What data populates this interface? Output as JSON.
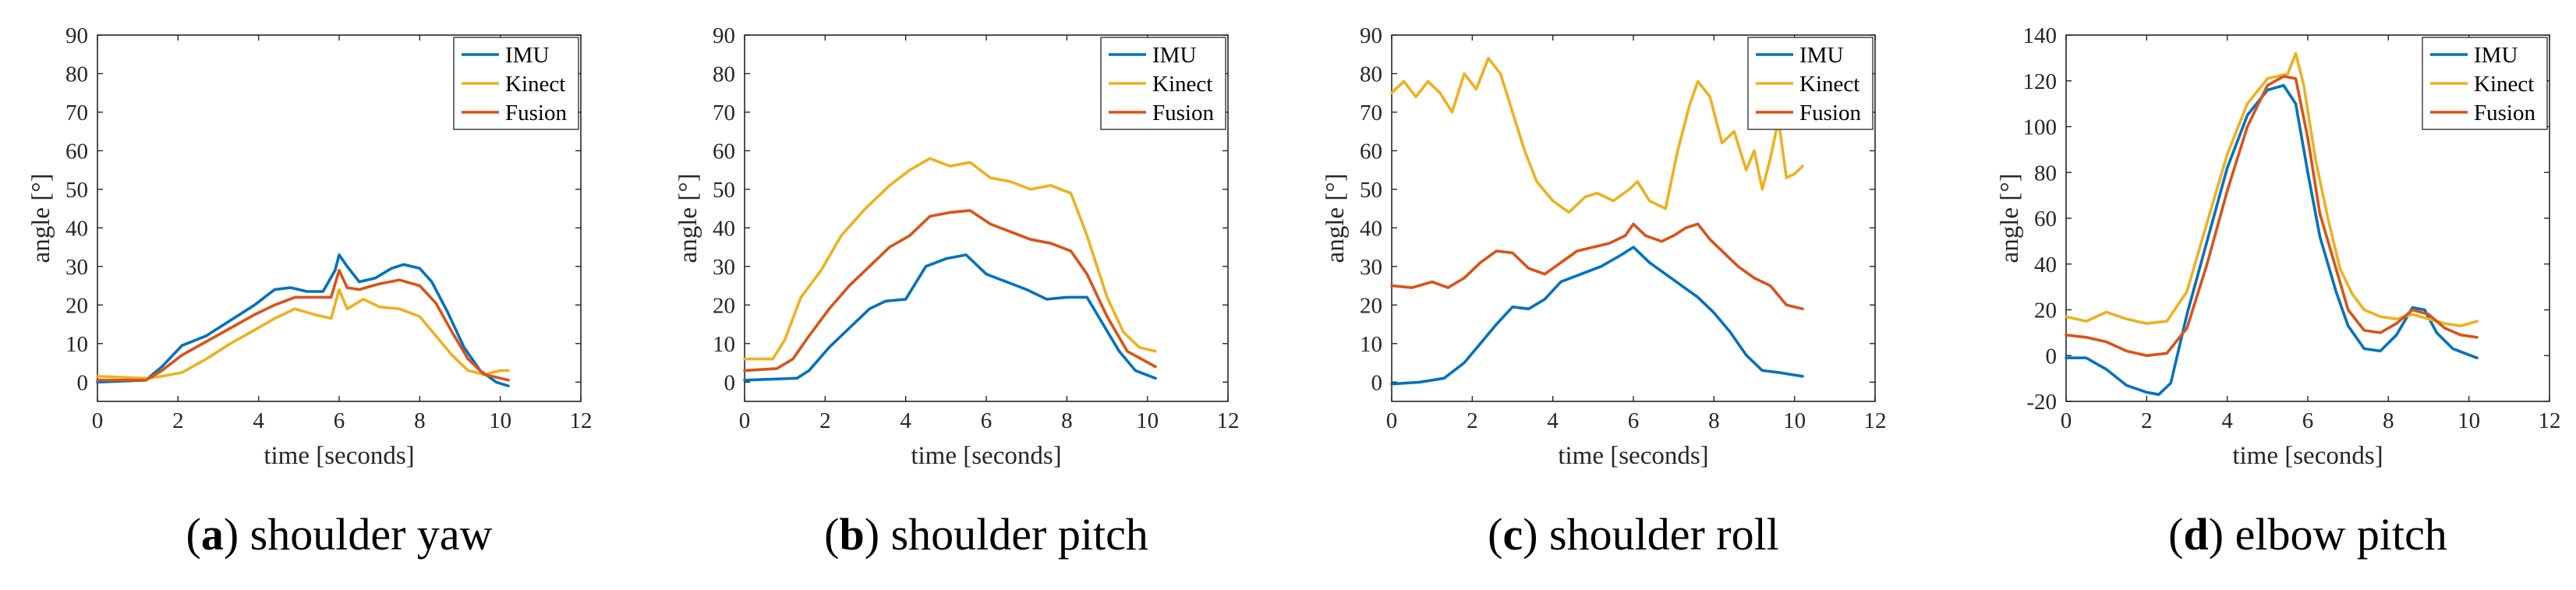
{
  "colors": {
    "IMU": "#0072BD",
    "Kinect": "#EDB120",
    "Fusion": "#D95319"
  },
  "chart_data": [
    {
      "type": "line",
      "caption_letter": "a",
      "caption_text": "shoulder yaw",
      "xlabel": "time [seconds]",
      "ylabel": "angle [°]",
      "xlim": [
        0,
        12
      ],
      "ylim": [
        -5,
        90
      ],
      "xticks": [
        0,
        2,
        4,
        6,
        8,
        10,
        12
      ],
      "yticks": [
        0,
        10,
        20,
        30,
        40,
        50,
        60,
        70,
        80,
        90
      ],
      "legend_position": "top-right",
      "series": [
        {
          "name": "IMU",
          "color_key": "IMU",
          "x": [
            0,
            1.2,
            1.6,
            2.1,
            2.7,
            3.3,
            3.9,
            4.4,
            4.8,
            5.2,
            5.6,
            5.9,
            6.0,
            6.2,
            6.5,
            6.9,
            7.3,
            7.6,
            8.0,
            8.3,
            8.7,
            9.1,
            9.5,
            9.9,
            10.2
          ],
          "y": [
            0,
            0.5,
            4,
            9.5,
            12,
            16,
            20,
            24,
            24.5,
            23.5,
            23.5,
            29,
            33,
            30,
            26,
            27,
            29.5,
            30.5,
            29.5,
            26,
            18,
            9,
            3,
            0,
            -1
          ]
        },
        {
          "name": "Kinect",
          "color_key": "Kinect",
          "x": [
            0,
            1.2,
            1.6,
            2.1,
            2.7,
            3.3,
            3.9,
            4.4,
            4.9,
            5.4,
            5.8,
            6.0,
            6.2,
            6.6,
            7.0,
            7.5,
            8.0,
            8.4,
            8.8,
            9.2,
            9.6,
            10.0,
            10.2
          ],
          "y": [
            1.5,
            1,
            1.5,
            2.5,
            6,
            10,
            13.5,
            16.5,
            19,
            17.5,
            16.5,
            24,
            19,
            21.5,
            19.5,
            19,
            17,
            12,
            7,
            3,
            2,
            3,
            3
          ]
        },
        {
          "name": "Fusion",
          "color_key": "Fusion",
          "x": [
            0,
            1.2,
            1.6,
            2.1,
            2.7,
            3.3,
            3.9,
            4.4,
            4.9,
            5.4,
            5.8,
            6.0,
            6.2,
            6.5,
            7.0,
            7.5,
            8.0,
            8.4,
            8.8,
            9.2,
            9.6,
            10.0,
            10.2
          ],
          "y": [
            0.5,
            0.5,
            3,
            7,
            10.5,
            14,
            17.5,
            20,
            22,
            22,
            22,
            29,
            24.5,
            24,
            25.5,
            26.5,
            25,
            20.5,
            13,
            6,
            2,
            1,
            0.5
          ]
        }
      ]
    },
    {
      "type": "line",
      "caption_letter": "b",
      "caption_text": "shoulder pitch",
      "xlabel": "time [seconds]",
      "ylabel": "angle [°]",
      "xlim": [
        0,
        12
      ],
      "ylim": [
        -5,
        90
      ],
      "xticks": [
        0,
        2,
        4,
        6,
        8,
        10,
        12
      ],
      "yticks": [
        0,
        10,
        20,
        30,
        40,
        50,
        60,
        70,
        80,
        90
      ],
      "legend_position": "top-right",
      "series": [
        {
          "name": "IMU",
          "color_key": "IMU",
          "x": [
            0,
            1.3,
            1.6,
            2.1,
            2.6,
            3.1,
            3.5,
            4.0,
            4.5,
            5.0,
            5.5,
            6.0,
            6.5,
            7.0,
            7.5,
            8.0,
            8.5,
            8.9,
            9.3,
            9.7,
            10.2
          ],
          "y": [
            0.5,
            1,
            3,
            9,
            14,
            19,
            21,
            21.5,
            30,
            32,
            33,
            28,
            26,
            24,
            21.5,
            22,
            22,
            15,
            8,
            3,
            1
          ]
        },
        {
          "name": "Kinect",
          "color_key": "Kinect",
          "x": [
            0,
            0.7,
            1.0,
            1.4,
            1.9,
            2.4,
            3.0,
            3.6,
            4.1,
            4.6,
            5.1,
            5.6,
            6.1,
            6.6,
            7.1,
            7.6,
            8.1,
            8.5,
            9.0,
            9.4,
            9.8,
            10.2
          ],
          "y": [
            6,
            6,
            11,
            22,
            29,
            38,
            45,
            51,
            55,
            58,
            56,
            57,
            53,
            52,
            50,
            51,
            49,
            38,
            22,
            13,
            9,
            8
          ]
        },
        {
          "name": "Fusion",
          "color_key": "Fusion",
          "x": [
            0,
            0.8,
            1.2,
            1.6,
            2.1,
            2.6,
            3.1,
            3.6,
            4.1,
            4.6,
            5.1,
            5.6,
            6.1,
            6.6,
            7.1,
            7.6,
            8.1,
            8.5,
            9.0,
            9.5,
            10.2
          ],
          "y": [
            3,
            3.5,
            6,
            12,
            19,
            25,
            30,
            35,
            38,
            43,
            44,
            44.5,
            41,
            39,
            37,
            36,
            34,
            28,
            17,
            8,
            4
          ]
        }
      ]
    },
    {
      "type": "line",
      "caption_letter": "c",
      "caption_text": "shoulder roll",
      "xlabel": "time [seconds]",
      "ylabel": "angle [°]",
      "xlim": [
        0,
        12
      ],
      "ylim": [
        -5,
        90
      ],
      "xticks": [
        0,
        2,
        4,
        6,
        8,
        10,
        12
      ],
      "yticks": [
        0,
        10,
        20,
        30,
        40,
        50,
        60,
        70,
        80,
        90
      ],
      "legend_position": "top-right",
      "series": [
        {
          "name": "IMU",
          "color_key": "IMU",
          "x": [
            0,
            0.7,
            1.3,
            1.8,
            2.2,
            2.6,
            3.0,
            3.4,
            3.8,
            4.2,
            4.7,
            5.2,
            5.7,
            6.0,
            6.4,
            6.8,
            7.2,
            7.6,
            8.0,
            8.4,
            8.8,
            9.2,
            9.6,
            10.2
          ],
          "y": [
            -0.5,
            0,
            1,
            5,
            10,
            15,
            19.5,
            19,
            21.5,
            26,
            28,
            30,
            33,
            35,
            31,
            28,
            25,
            22,
            18,
            13,
            7,
            3,
            2.5,
            1.5
          ]
        },
        {
          "name": "Kinect",
          "color_key": "Kinect",
          "x": [
            0,
            0.3,
            0.6,
            0.9,
            1.2,
            1.5,
            1.8,
            2.1,
            2.4,
            2.7,
            3.0,
            3.3,
            3.6,
            4.0,
            4.4,
            4.8,
            5.1,
            5.5,
            5.9,
            6.1,
            6.4,
            6.8,
            7.1,
            7.4,
            7.6,
            7.9,
            8.2,
            8.5,
            8.8,
            9.0,
            9.2,
            9.4,
            9.6,
            9.8,
            10.0,
            10.2
          ],
          "y": [
            75,
            78,
            74,
            78,
            75,
            70,
            80,
            76,
            84,
            80,
            70,
            60,
            52,
            47,
            44,
            48,
            49,
            47,
            50,
            52,
            47,
            45,
            60,
            72,
            78,
            74,
            62,
            65,
            55,
            60,
            50,
            58,
            68,
            53,
            54,
            56
          ]
        },
        {
          "name": "Fusion",
          "color_key": "Fusion",
          "x": [
            0,
            0.5,
            1.0,
            1.4,
            1.8,
            2.2,
            2.6,
            3.0,
            3.4,
            3.8,
            4.2,
            4.6,
            5.0,
            5.4,
            5.8,
            6.0,
            6.3,
            6.7,
            7.0,
            7.3,
            7.6,
            7.9,
            8.2,
            8.6,
            9.0,
            9.4,
            9.8,
            10.2
          ],
          "y": [
            25,
            24.5,
            26,
            24.5,
            27,
            31,
            34,
            33.5,
            29.5,
            28,
            31,
            34,
            35,
            36,
            38,
            41,
            38,
            36.5,
            38,
            40,
            41,
            37,
            34,
            30,
            27,
            25,
            20,
            19
          ]
        }
      ]
    },
    {
      "type": "line",
      "caption_letter": "d",
      "caption_text": "elbow pitch",
      "xlabel": "time [seconds]",
      "ylabel": "angle [°]",
      "xlim": [
        0,
        12
      ],
      "ylim": [
        -20,
        140
      ],
      "xticks": [
        0,
        2,
        4,
        6,
        8,
        10,
        12
      ],
      "yticks": [
        -20,
        0,
        20,
        40,
        60,
        80,
        100,
        120,
        140
      ],
      "legend_position": "top-right",
      "series": [
        {
          "name": "IMU",
          "color_key": "IMU",
          "x": [
            0,
            0.5,
            1.0,
            1.5,
            2.0,
            2.3,
            2.6,
            3.0,
            3.5,
            4.0,
            4.5,
            5.0,
            5.4,
            5.7,
            6.0,
            6.3,
            6.7,
            7.0,
            7.4,
            7.8,
            8.2,
            8.6,
            8.9,
            9.2,
            9.6,
            10.2
          ],
          "y": [
            -1,
            -1,
            -6,
            -13,
            -16,
            -17,
            -12,
            18,
            50,
            82,
            105,
            116,
            118,
            110,
            80,
            52,
            28,
            13,
            3,
            2,
            9,
            21,
            20,
            10,
            3,
            -1
          ]
        },
        {
          "name": "Kinect",
          "color_key": "Kinect",
          "x": [
            0,
            0.5,
            1.0,
            1.5,
            2.0,
            2.5,
            3.0,
            3.5,
            4.0,
            4.5,
            5.0,
            5.5,
            5.7,
            5.9,
            6.2,
            6.5,
            6.8,
            7.1,
            7.4,
            7.8,
            8.2,
            8.6,
            9.0,
            9.4,
            9.8,
            10.2
          ],
          "y": [
            17,
            15,
            19,
            16,
            14,
            15,
            28,
            58,
            88,
            110,
            121,
            123,
            132,
            118,
            85,
            60,
            38,
            27,
            20,
            17,
            16,
            18,
            16,
            14,
            13,
            15
          ]
        },
        {
          "name": "Fusion",
          "color_key": "Fusion",
          "x": [
            0,
            0.5,
            1.0,
            1.5,
            2.0,
            2.5,
            3.0,
            3.5,
            4.0,
            4.5,
            5.0,
            5.4,
            5.7,
            6.0,
            6.3,
            6.7,
            7.0,
            7.4,
            7.8,
            8.2,
            8.6,
            9.0,
            9.4,
            9.8,
            10.2
          ],
          "y": [
            9,
            8,
            6,
            2,
            0,
            1,
            12,
            40,
            72,
            100,
            118,
            122,
            121,
            95,
            62,
            38,
            20,
            11,
            10,
            14,
            20,
            18,
            12,
            9,
            8
          ]
        }
      ]
    }
  ]
}
